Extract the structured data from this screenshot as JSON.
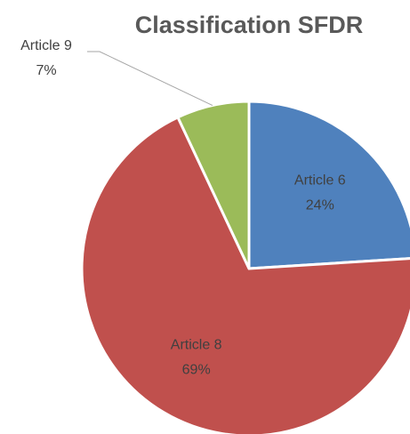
{
  "chart_data": {
    "type": "pie",
    "title": "Classification SFDR",
    "categories": [
      "Article 6",
      "Article 8",
      "Article 9"
    ],
    "values": [
      24,
      69,
      7
    ],
    "value_labels": [
      "24%",
      "69%",
      "7%"
    ],
    "colors": [
      "#4f81bd",
      "#c0504d",
      "#9bbb59"
    ]
  }
}
